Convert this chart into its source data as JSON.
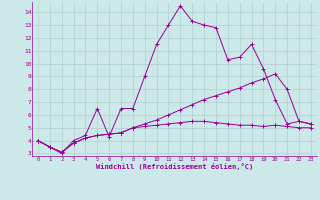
{
  "xlabel": "Windchill (Refroidissement éolien,°C)",
  "ylabel": "",
  "background_color": "#cce8e8",
  "grid_color": "#b0d0d0",
  "line_color": "#990099",
  "xlim": [
    -0.5,
    23.5
  ],
  "ylim": [
    2.8,
    14.8
  ],
  "yticks": [
    3,
    4,
    5,
    6,
    7,
    8,
    9,
    10,
    11,
    12,
    13,
    14
  ],
  "xticks": [
    0,
    1,
    2,
    3,
    4,
    5,
    6,
    7,
    8,
    9,
    10,
    11,
    12,
    13,
    14,
    15,
    16,
    17,
    18,
    19,
    20,
    21,
    22,
    23
  ],
  "series": [
    {
      "x": [
        0,
        1,
        2,
        3,
        4,
        5,
        6,
        7,
        8,
        9,
        10,
        11,
        12,
        13,
        14,
        15,
        16,
        17,
        18,
        19,
        20,
        21,
        22,
        23
      ],
      "y": [
        4.0,
        3.5,
        3.0,
        4.0,
        4.4,
        6.5,
        4.3,
        6.5,
        6.5,
        9.0,
        11.5,
        13.0,
        14.5,
        13.3,
        13.0,
        12.8,
        10.3,
        10.5,
        11.5,
        9.6,
        7.2,
        5.3,
        5.5,
        5.3
      ]
    },
    {
      "x": [
        0,
        1,
        2,
        3,
        4,
        5,
        6,
        7,
        8,
        9,
        10,
        11,
        12,
        13,
        14,
        15,
        16,
        17,
        18,
        19,
        20,
        21,
        22,
        23
      ],
      "y": [
        4.0,
        3.5,
        3.1,
        3.8,
        4.2,
        4.4,
        4.5,
        4.6,
        5.0,
        5.3,
        5.6,
        6.0,
        6.4,
        6.8,
        7.2,
        7.5,
        7.8,
        8.1,
        8.5,
        8.8,
        9.2,
        8.0,
        5.5,
        5.3
      ]
    },
    {
      "x": [
        0,
        1,
        2,
        3,
        4,
        5,
        6,
        7,
        8,
        9,
        10,
        11,
        12,
        13,
        14,
        15,
        16,
        17,
        18,
        19,
        20,
        21,
        22,
        23
      ],
      "y": [
        4.0,
        3.5,
        3.1,
        3.8,
        4.2,
        4.4,
        4.5,
        4.6,
        5.0,
        5.1,
        5.2,
        5.3,
        5.4,
        5.5,
        5.5,
        5.4,
        5.3,
        5.2,
        5.2,
        5.1,
        5.2,
        5.1,
        5.0,
        5.0
      ]
    }
  ]
}
